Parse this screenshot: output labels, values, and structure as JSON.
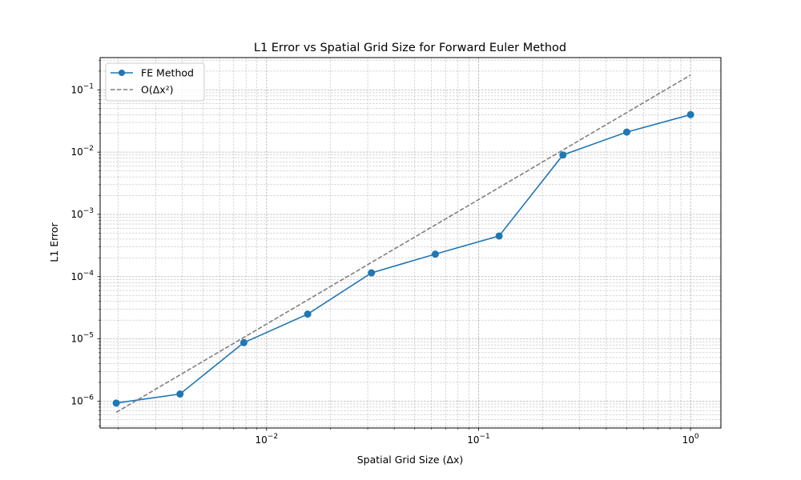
{
  "chart_data": {
    "type": "line",
    "title": "L1 Error vs Spatial Grid Size for Forward Euler Method",
    "xlabel": "Spatial Grid Size (Δx)",
    "ylabel": "L1 Error",
    "x_scale": "log",
    "y_scale": "log",
    "xlim": [
      0.00164,
      1.39
    ],
    "ylim": [
      3.7e-07,
      0.33
    ],
    "grid": true,
    "legend_position": "top-left",
    "x_ticks": [
      {
        "value": 0.01,
        "base": "10",
        "exp": "−2"
      },
      {
        "value": 0.1,
        "base": "10",
        "exp": "−1"
      },
      {
        "value": 1,
        "base": "10",
        "exp": "0"
      }
    ],
    "y_ticks": [
      {
        "value": 1e-06,
        "base": "10",
        "exp": "−6"
      },
      {
        "value": 1e-05,
        "base": "10",
        "exp": "−5"
      },
      {
        "value": 0.0001,
        "base": "10",
        "exp": "−4"
      },
      {
        "value": 0.001,
        "base": "10",
        "exp": "−3"
      },
      {
        "value": 0.01,
        "base": "10",
        "exp": "−2"
      },
      {
        "value": 0.1,
        "base": "10",
        "exp": "−1"
      }
    ],
    "series": [
      {
        "name": "FE Method",
        "color": "#1f77b4",
        "style": "solid-marker",
        "x": [
          0.001953125,
          0.00390625,
          0.0078125,
          0.015625,
          0.03125,
          0.0625,
          0.125,
          0.25,
          0.5,
          1.0
        ],
        "y": [
          9.3e-07,
          1.3e-06,
          8.7e-06,
          2.5e-05,
          0.000115,
          0.00023,
          0.00045,
          0.009,
          0.021,
          0.04
        ]
      },
      {
        "name": "O(Δx²)",
        "color": "#808080",
        "style": "dashed",
        "x": [
          0.001953125,
          1.0
        ],
        "y": [
          6.6e-07,
          0.173
        ]
      }
    ]
  }
}
